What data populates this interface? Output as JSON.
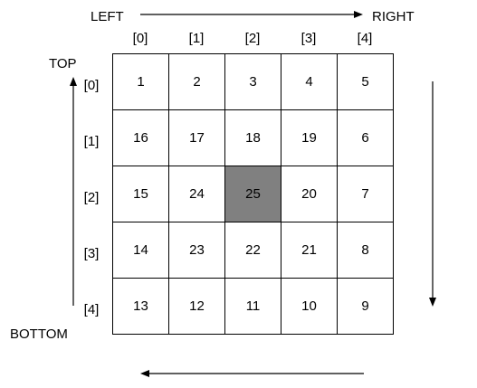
{
  "labels": {
    "left": "LEFT",
    "right": "RIGHT",
    "top": "TOP",
    "bottom": "BOTTOM"
  },
  "col_indices": [
    "[0]",
    "[1]",
    "[2]",
    "[3]",
    "[4]"
  ],
  "row_indices": [
    "[0]",
    "[1]",
    "[2]",
    "[3]",
    "[4]"
  ],
  "grid": [
    [
      "1",
      "2",
      "3",
      "4",
      "5"
    ],
    [
      "16",
      "17",
      "18",
      "19",
      "6"
    ],
    [
      "15",
      "24",
      "25",
      "20",
      "7"
    ],
    [
      "14",
      "23",
      "22",
      "21",
      "8"
    ],
    [
      "13",
      "12",
      "11",
      "10",
      "9"
    ]
  ],
  "highlight_value": "25",
  "colors": {
    "highlight": "#808080",
    "line": "#000000"
  }
}
